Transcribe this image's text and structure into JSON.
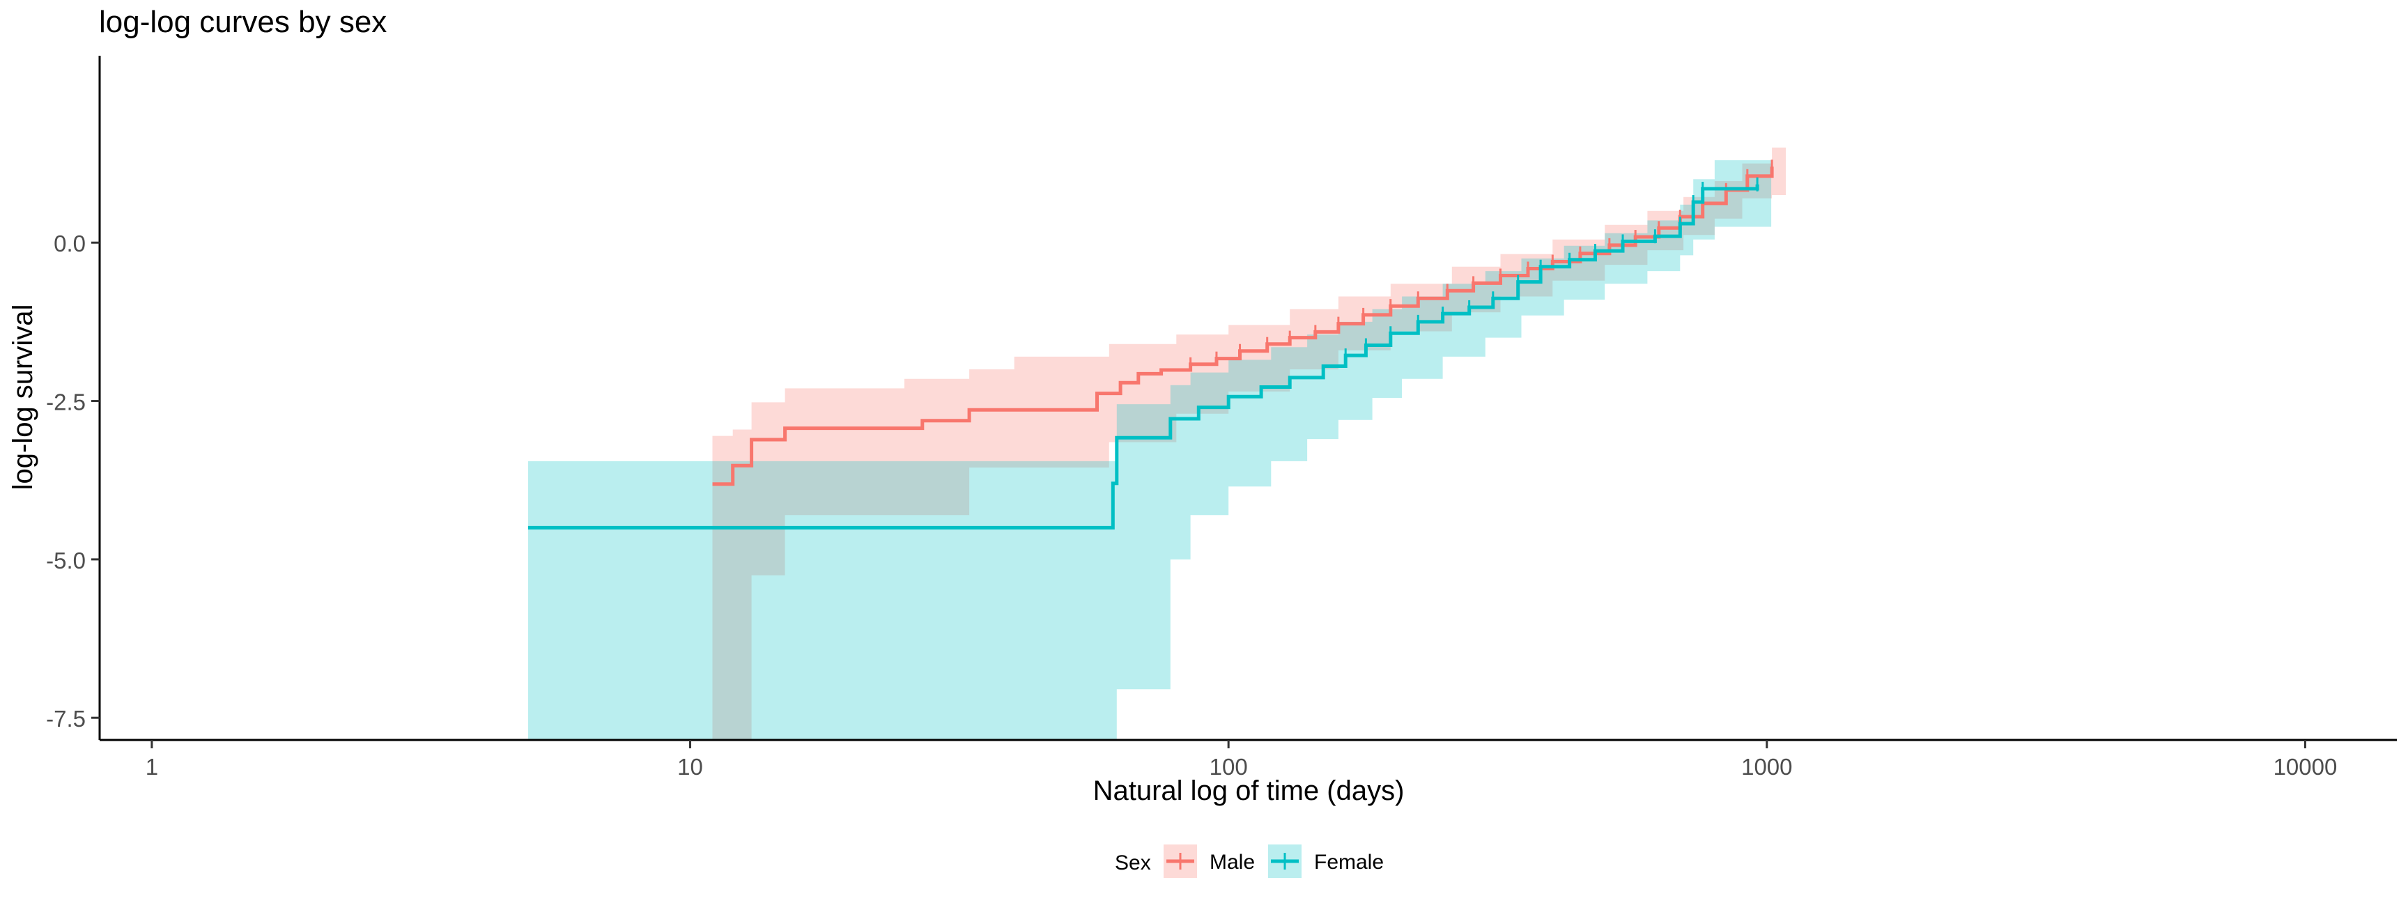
{
  "chart_data": {
    "type": "line",
    "title": "log-log curves by sex",
    "xlabel": "Natural log of time (days)",
    "ylabel": "log-log survival",
    "x_scale": "log10",
    "xlim": [
      0.8,
      14800
    ],
    "ylim": [
      -7.85,
      2.95
    ],
    "x_ticks": [
      1,
      10,
      100,
      1000,
      10000
    ],
    "x_tick_labels": [
      "1",
      "10",
      "100",
      "1000",
      "10000"
    ],
    "y_ticks": [
      0.0,
      -2.5,
      -5.0,
      -7.5
    ],
    "y_tick_labels": [
      "0.0",
      "-2.5",
      "-5.0",
      "-7.5"
    ],
    "grid": false,
    "legend": {
      "title": "Sex",
      "position": "bottom",
      "entries": [
        "Male",
        "Female"
      ]
    },
    "series": [
      {
        "name": "Male",
        "color": "#F8766D",
        "band_color": "#F8766D",
        "steps": [
          [
            11,
            -3.81
          ],
          [
            12,
            -3.52
          ],
          [
            13,
            -3.11
          ],
          [
            15,
            -2.93
          ],
          [
            22,
            -2.93
          ],
          [
            27,
            -2.81
          ],
          [
            33,
            -2.64
          ],
          [
            56,
            -2.64
          ],
          [
            57,
            -2.38
          ],
          [
            63,
            -2.21
          ],
          [
            68,
            -2.07
          ],
          [
            75,
            -2.01
          ],
          [
            85,
            -1.92
          ],
          [
            95,
            -1.83
          ],
          [
            105,
            -1.71
          ],
          [
            118,
            -1.6
          ],
          [
            130,
            -1.5
          ],
          [
            145,
            -1.41
          ],
          [
            160,
            -1.28
          ],
          [
            178,
            -1.14
          ],
          [
            200,
            -1.0
          ],
          [
            225,
            -0.88
          ],
          [
            255,
            -0.76
          ],
          [
            285,
            -0.64
          ],
          [
            320,
            -0.52
          ],
          [
            360,
            -0.41
          ],
          [
            400,
            -0.3
          ],
          [
            450,
            -0.17
          ],
          [
            510,
            -0.04
          ],
          [
            570,
            0.09
          ],
          [
            630,
            0.23
          ],
          [
            690,
            0.41
          ],
          [
            760,
            0.62
          ],
          [
            840,
            0.83
          ],
          [
            920,
            1.05
          ],
          [
            1022,
            1.2
          ]
        ],
        "band": [
          [
            11,
            -7.85,
            -3.05
          ],
          [
            12,
            -7.85,
            -2.95
          ],
          [
            13,
            -5.25,
            -2.52
          ],
          [
            15,
            -4.3,
            -2.3
          ],
          [
            25,
            -4.3,
            -2.15
          ],
          [
            33,
            -3.55,
            -2.0
          ],
          [
            40,
            -3.55,
            -1.8
          ],
          [
            60,
            -3.15,
            -1.6
          ],
          [
            80,
            -2.7,
            -1.45
          ],
          [
            100,
            -2.35,
            -1.3
          ],
          [
            130,
            -2.0,
            -1.05
          ],
          [
            160,
            -1.7,
            -0.85
          ],
          [
            200,
            -1.4,
            -0.65
          ],
          [
            260,
            -1.1,
            -0.38
          ],
          [
            320,
            -0.85,
            -0.18
          ],
          [
            400,
            -0.6,
            0.05
          ],
          [
            500,
            -0.35,
            0.28
          ],
          [
            600,
            -0.12,
            0.5
          ],
          [
            700,
            0.12,
            0.72
          ],
          [
            800,
            0.38,
            0.97
          ],
          [
            900,
            0.7,
            1.25
          ],
          [
            1022,
            0.75,
            1.5
          ]
        ]
      },
      {
        "name": "Female",
        "color": "#00BFC4",
        "band_color": "#00BFC4",
        "steps": [
          [
            5,
            -4.5
          ],
          [
            61,
            -3.8
          ],
          [
            62,
            -3.08
          ],
          [
            78,
            -2.78
          ],
          [
            88,
            -2.6
          ],
          [
            100,
            -2.43
          ],
          [
            115,
            -2.28
          ],
          [
            130,
            -2.13
          ],
          [
            150,
            -1.95
          ],
          [
            165,
            -1.78
          ],
          [
            180,
            -1.62
          ],
          [
            200,
            -1.43
          ],
          [
            225,
            -1.25
          ],
          [
            250,
            -1.12
          ],
          [
            280,
            -1.02
          ],
          [
            310,
            -0.88
          ],
          [
            345,
            -0.62
          ],
          [
            380,
            -0.38
          ],
          [
            430,
            -0.27
          ],
          [
            480,
            -0.13
          ],
          [
            540,
            0.02
          ],
          [
            620,
            0.1
          ],
          [
            690,
            0.3
          ],
          [
            730,
            0.64
          ],
          [
            760,
            0.85
          ],
          [
            960,
            0.92
          ]
        ],
        "band": [
          [
            5,
            -7.85,
            -3.45
          ],
          [
            62,
            -7.05,
            -2.55
          ],
          [
            78,
            -5.0,
            -2.25
          ],
          [
            85,
            -4.3,
            -2.05
          ],
          [
            100,
            -3.85,
            -1.85
          ],
          [
            120,
            -3.45,
            -1.65
          ],
          [
            140,
            -3.1,
            -1.45
          ],
          [
            160,
            -2.8,
            -1.25
          ],
          [
            185,
            -2.45,
            -1.05
          ],
          [
            210,
            -2.15,
            -0.85
          ],
          [
            250,
            -1.8,
            -0.65
          ],
          [
            300,
            -1.5,
            -0.45
          ],
          [
            350,
            -1.15,
            -0.25
          ],
          [
            420,
            -0.9,
            -0.05
          ],
          [
            500,
            -0.65,
            0.15
          ],
          [
            600,
            -0.45,
            0.35
          ],
          [
            690,
            -0.2,
            0.6
          ],
          [
            730,
            0.05,
            1.0
          ],
          [
            800,
            0.25,
            1.3
          ],
          [
            960,
            0.25,
            1.3
          ]
        ]
      }
    ]
  }
}
